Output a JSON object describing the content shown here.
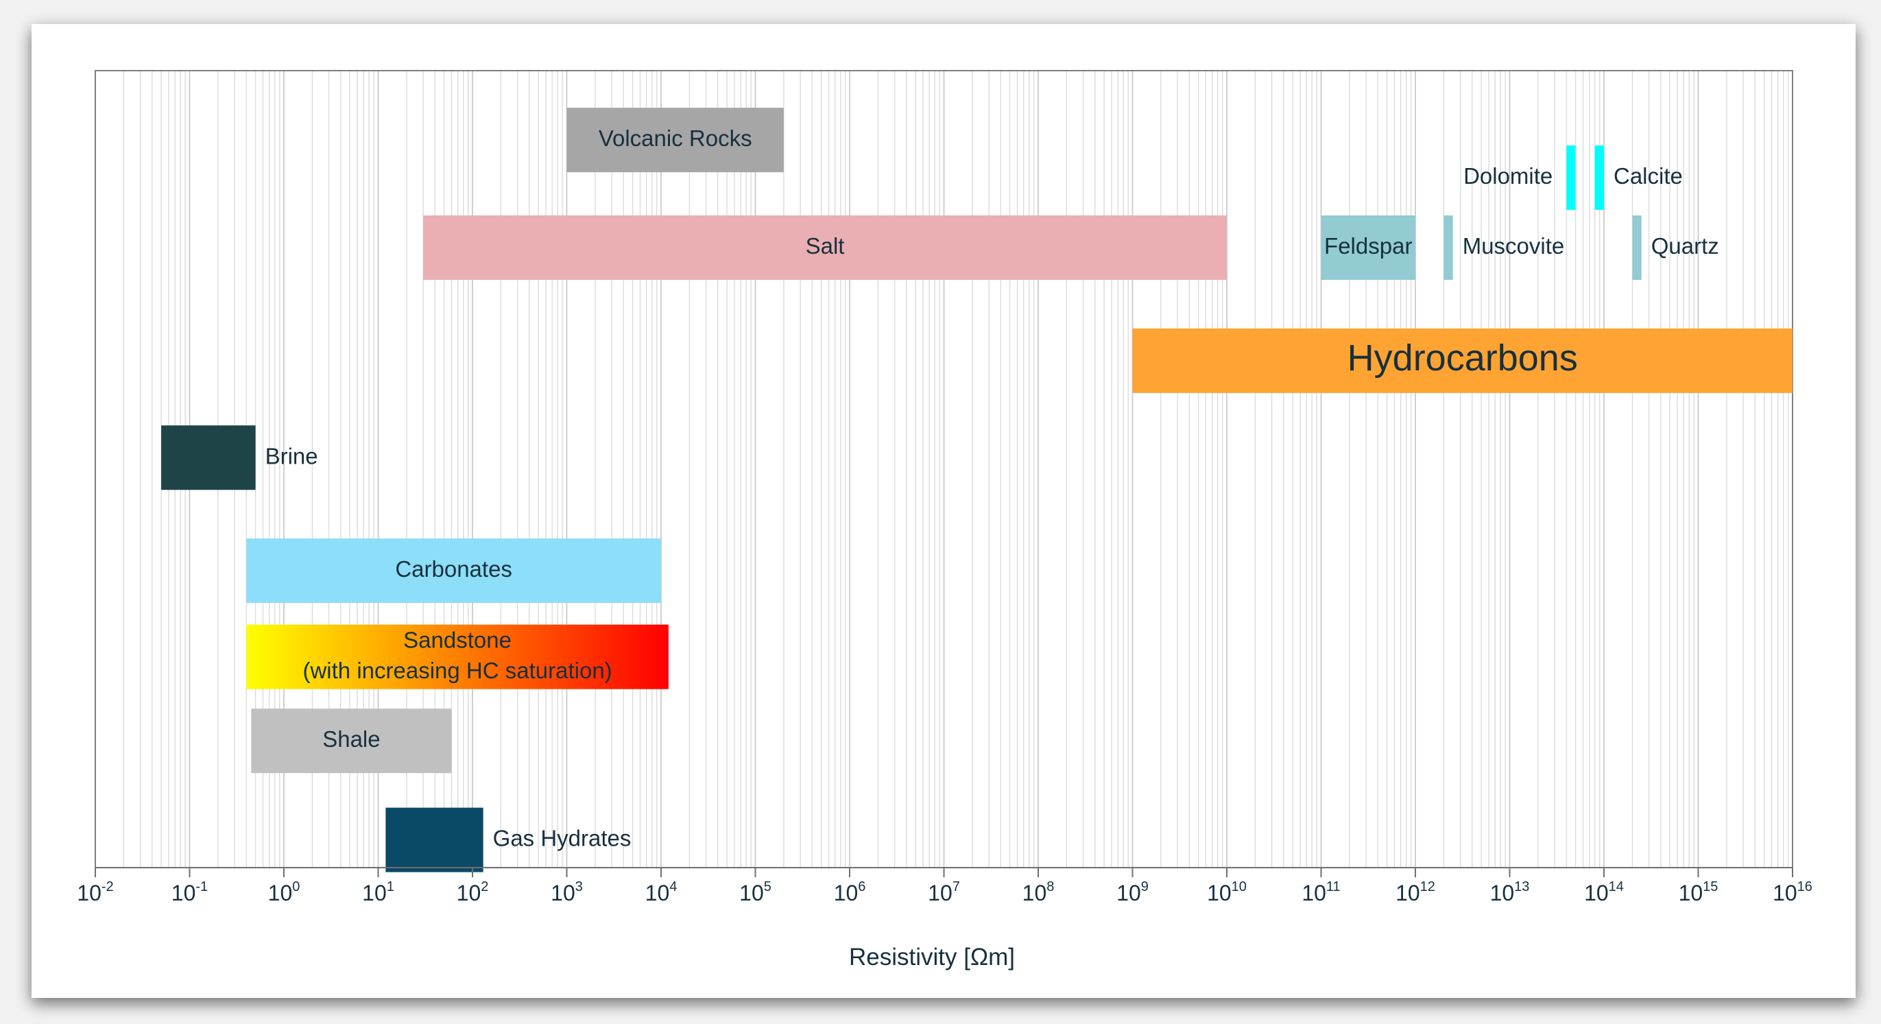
{
  "chart_data": {
    "type": "range-bar",
    "title": "",
    "xlabel": "Resistivity [Ωm]",
    "ylabel": "",
    "x_scale": "log",
    "xlim": [
      0.01,
      1e+16
    ],
    "grid": true,
    "legend": "none",
    "ticks": [
      {
        "base": "10",
        "exp": "-2"
      },
      {
        "base": "10",
        "exp": "-1"
      },
      {
        "base": "10",
        "exp": "0"
      },
      {
        "base": "10",
        "exp": "1"
      },
      {
        "base": "10",
        "exp": "2"
      },
      {
        "base": "10",
        "exp": "3"
      },
      {
        "base": "10",
        "exp": "4"
      },
      {
        "base": "10",
        "exp": "5"
      },
      {
        "base": "10",
        "exp": "6"
      },
      {
        "base": "10",
        "exp": "7"
      },
      {
        "base": "10",
        "exp": "8"
      },
      {
        "base": "10",
        "exp": "9"
      },
      {
        "base": "10",
        "exp": "10"
      },
      {
        "base": "10",
        "exp": "11"
      },
      {
        "base": "10",
        "exp": "12"
      },
      {
        "base": "10",
        "exp": "13"
      },
      {
        "base": "10",
        "exp": "14"
      },
      {
        "base": "10",
        "exp": "15"
      },
      {
        "base": "10",
        "exp": "16"
      }
    ],
    "bars": [
      {
        "name": "Volcanic Rocks",
        "lines": [
          "Volcanic Rocks"
        ],
        "min": 1000,
        "max": 200000,
        "row": 0.3,
        "color": "#a6a6a6",
        "label_pos": "inside",
        "font": "medium"
      },
      {
        "name": "Dolomite",
        "lines": [
          "Dolomite"
        ],
        "min": 40000000000000.0,
        "max": 50000000000000.0,
        "row": 0.65,
        "color": "#00ffff",
        "label_pos": "left",
        "font": "medium"
      },
      {
        "name": "Calcite",
        "lines": [
          "Calcite"
        ],
        "min": 80000000000000.0,
        "max": 100000000000000.0,
        "row": 0.65,
        "color": "#00ffff",
        "label_pos": "right",
        "font": "medium"
      },
      {
        "name": "Salt",
        "lines": [
          "Salt"
        ],
        "min": 30,
        "max": 10000000000.0,
        "row": 1.3,
        "color": "#eaafb2",
        "label_pos": "inside",
        "font": "medium"
      },
      {
        "name": "Feldspar",
        "lines": [
          "Feldspar"
        ],
        "min": 100000000000.0,
        "max": 1000000000000.0,
        "row": 1.3,
        "color": "#92cbd2",
        "label_pos": "inside",
        "font": "medium"
      },
      {
        "name": "Muscovite",
        "lines": [
          "Muscovite"
        ],
        "min": 2000000000000.0,
        "max": 2500000000000.0,
        "row": 1.3,
        "color": "#92cbd2",
        "label_pos": "right",
        "font": "medium"
      },
      {
        "name": "Quartz",
        "lines": [
          "Quartz"
        ],
        "min": 200000000000000.0,
        "max": 250000000000000.0,
        "row": 1.3,
        "color": "#92cbd2",
        "label_pos": "right",
        "font": "medium"
      },
      {
        "name": "Hydrocarbons",
        "lines": [
          "Hydrocarbons"
        ],
        "min": 1000000000.0,
        "max": 1e+16,
        "row": 2.35,
        "color": "#ffa333",
        "label_pos": "inside",
        "font": "large"
      },
      {
        "name": "Brine",
        "lines": [
          "Brine"
        ],
        "min": 0.05,
        "max": 0.5,
        "row": 3.25,
        "color": "#1f4447",
        "label_pos": "right",
        "font": "medium"
      },
      {
        "name": "Carbonates",
        "lines": [
          "Carbonates"
        ],
        "min": 0.4,
        "max": 10000,
        "row": 4.3,
        "color": "#8ddef8",
        "label_pos": "inside",
        "font": "medium"
      },
      {
        "name": "Sandstone",
        "lines": [
          "Sandstone",
          "(with increasing HC saturation)"
        ],
        "min": 0.4,
        "max": 12000,
        "row": 5.1,
        "gradient": [
          "#ffff00",
          "#ff0000"
        ],
        "label_pos": "inside",
        "font": "medium"
      },
      {
        "name": "Shale",
        "lines": [
          "Shale"
        ],
        "min": 0.45,
        "max": 60,
        "row": 5.88,
        "color": "#c0c0c0",
        "label_pos": "inside",
        "font": "medium"
      },
      {
        "name": "Gas Hydrates",
        "lines": [
          "Gas Hydrates"
        ],
        "min": 12,
        "max": 130,
        "row": 6.8,
        "color": "#0b4a66",
        "label_pos": "right",
        "font": "medium"
      }
    ]
  }
}
